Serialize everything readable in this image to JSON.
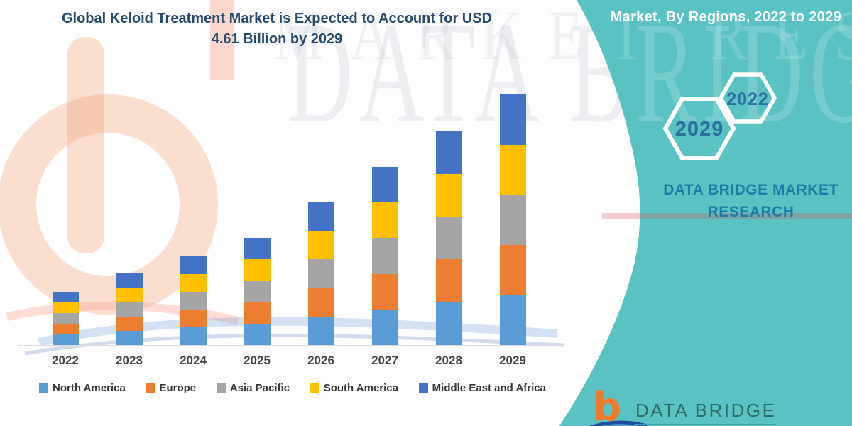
{
  "title": {
    "text": "Global Keloid Treatment Market is Expected to Account for USD 4.61 Billion by 2029"
  },
  "side_panel": {
    "heading": "Market, By Regions, 2022 to 2029",
    "hexagons": [
      {
        "label": "2022"
      },
      {
        "label": "2029"
      }
    ],
    "brand_caption": "DATA BRIDGE MARKET RESEARCH"
  },
  "watermark": {
    "row1": "DATA BRIDGE",
    "row2": "MARKET RESEARCH"
  },
  "footer_logo": {
    "logo_letter": "b",
    "brand_name": "DATA BRIDGE"
  },
  "colors": {
    "teal_panel": "#5BC2C3",
    "brand_orange": "#EE7B2C",
    "title_navy": "#28496E",
    "caption_blue": "#1E7BA6",
    "hexagon_text": "#2D6F9E"
  },
  "chart_data": {
    "type": "bar",
    "stacked": true,
    "title": "Global Keloid Treatment Market is Expected to Account for USD 4.61 Billion by 2029",
    "unit": "USD Billion",
    "categories": [
      "2022",
      "2023",
      "2024",
      "2025",
      "2026",
      "2027",
      "2028",
      "2029"
    ],
    "totals": [
      0.98,
      1.32,
      1.64,
      1.97,
      2.63,
      3.28,
      3.94,
      4.61
    ],
    "series": [
      {
        "name": "North America",
        "color": "#5B9BD5",
        "values": [
          0.196,
          0.264,
          0.328,
          0.394,
          0.526,
          0.656,
          0.788,
          0.922
        ]
      },
      {
        "name": "Europe",
        "color": "#ED7D31",
        "values": [
          0.196,
          0.264,
          0.328,
          0.394,
          0.526,
          0.656,
          0.788,
          0.922
        ]
      },
      {
        "name": "Asia Pacific",
        "color": "#A5A5A5",
        "values": [
          0.196,
          0.264,
          0.328,
          0.394,
          0.526,
          0.656,
          0.788,
          0.922
        ]
      },
      {
        "name": "South America",
        "color": "#FFC000",
        "values": [
          0.196,
          0.264,
          0.328,
          0.394,
          0.526,
          0.656,
          0.788,
          0.922
        ]
      },
      {
        "name": "Middle East and Africa",
        "color": "#4472C4",
        "values": [
          0.196,
          0.264,
          0.328,
          0.394,
          0.526,
          0.656,
          0.788,
          0.922
        ]
      }
    ],
    "xlabel": "",
    "ylabel": "",
    "ylim": [
      0,
      4.61
    ],
    "grid": false,
    "legend_position": "bottom"
  }
}
